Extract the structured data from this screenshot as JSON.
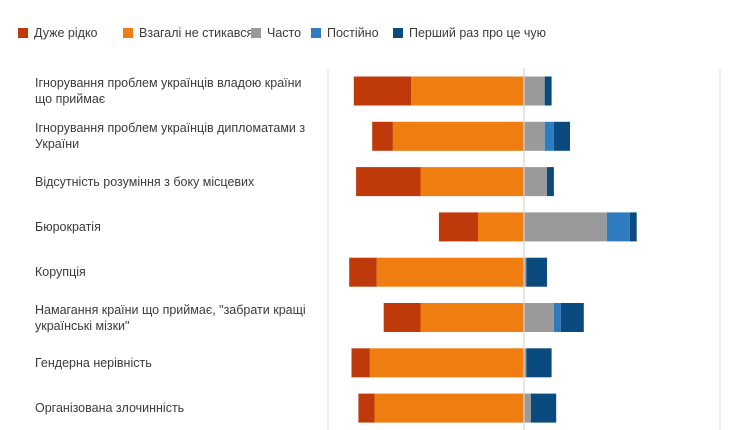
{
  "chart_data": {
    "type": "bar",
    "stacking": "diverging",
    "legend_position": "top-left",
    "gridlines": true,
    "series": [
      {
        "name": "Дуже рідко",
        "color": "#c0390b",
        "side": "negative"
      },
      {
        "name": "Взагалі не стикався",
        "color": "#ef7d10",
        "side": "negative"
      },
      {
        "name": "Часто",
        "color": "#9a9a9a",
        "side": "neutral"
      },
      {
        "name": "Постійно",
        "color": "#2e7bbf",
        "side": "positive"
      },
      {
        "name": "Перший раз про це чую",
        "color": "#0b4a7e",
        "side": "positive"
      }
    ],
    "categories": [
      {
        "label": "Ігнорування проблем українців владою країни що приймає",
        "values": [
          25,
          49,
          9,
          0,
          3
        ]
      },
      {
        "label": "Ігнорування проблем українців дипломатами з України",
        "values": [
          9,
          57,
          9,
          4,
          7
        ]
      },
      {
        "label": "Відсутність розуміння з боку місцевих",
        "values": [
          28,
          45,
          10,
          0,
          3
        ]
      },
      {
        "label": "Бюрократія",
        "values": [
          17,
          20,
          36,
          10,
          3
        ]
      },
      {
        "label": "Корупція",
        "values": [
          12,
          64,
          1,
          0,
          9
        ]
      },
      {
        "label": "Намагання країни що приймає, \"забрати кращі українські мізки\"",
        "values": [
          16,
          45,
          13,
          3,
          10
        ]
      },
      {
        "label": "Гендерна нерівність",
        "values": [
          8,
          67,
          1,
          0,
          11
        ]
      },
      {
        "label": "Організована злочинність",
        "values": [
          7,
          65,
          3,
          0,
          11
        ]
      }
    ]
  }
}
